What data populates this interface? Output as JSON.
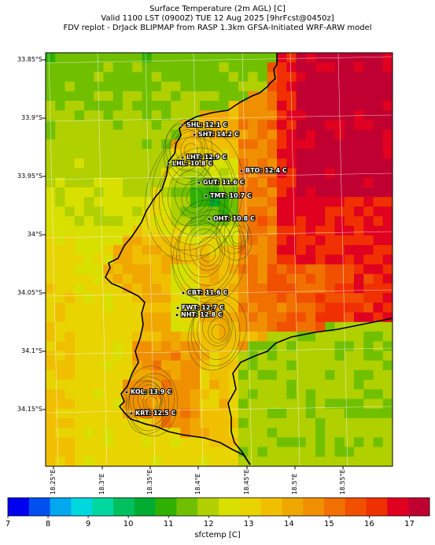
{
  "title": {
    "line1": "Surface Temperature (2m AGL) [C]",
    "line2": "Valid 1100 LST (0900Z) TUE 12 Aug 2025 [9hrFcst@0450z]",
    "line3": "FDV replot - DrJack BLIPMAP from RASP 1.3km GFSA-Initiated WRF-ARW model"
  },
  "axes": {
    "lat_ticks": [
      "33.85°S",
      "33.9°S",
      "33.95°S",
      "34°S",
      "34.05°S",
      "34.1°S",
      "34.15°S"
    ],
    "lon_ticks": [
      "18.25°E",
      "18.3°E",
      "18.35°E",
      "18.4°E",
      "18.45°E",
      "18.5°E",
      "18.55°E"
    ]
  },
  "stations": [
    {
      "label": "SHL: 12.1 C",
      "temp": 12.1
    },
    {
      "label": "SHT: 14.2 C",
      "temp": 14.2
    },
    {
      "label": "LHT: 12.9 C",
      "temp": 12.9
    },
    {
      "label": "LHL: 10.8 C",
      "temp": 10.8
    },
    {
      "label": "BTO: 12.4 C",
      "temp": 12.4
    },
    {
      "label": "GUT: 11.6 C",
      "temp": 11.6
    },
    {
      "label": "TMT: 10.7 C",
      "temp": 10.7
    },
    {
      "label": "OHT: 10.8 C",
      "temp": 10.8
    },
    {
      "label": "CBT: 11.6 C",
      "temp": 11.6
    },
    {
      "label": "FWT: 12.7 C",
      "temp": 12.7
    },
    {
      "label": "NHT: 12.8 C",
      "temp": 12.8
    },
    {
      "label": "KOL: 13.9 C",
      "temp": 13.9
    },
    {
      "label": "KRT: 12.5 C",
      "temp": 12.5
    }
  ],
  "colorbar": {
    "label": "sfctemp [C]",
    "ticks": [
      "7",
      "8",
      "9",
      "10",
      "11",
      "12",
      "13",
      "14",
      "15",
      "16",
      "17"
    ],
    "colors": [
      "#0000f0",
      "#0050f0",
      "#00a8f0",
      "#00d8e0",
      "#00d8a0",
      "#00c060",
      "#00ad30",
      "#30b000",
      "#70c000",
      "#b0d000",
      "#d8e000",
      "#e8d400",
      "#f0c000",
      "#f0a800",
      "#f09000",
      "#f07000",
      "#f05000",
      "#f03000",
      "#e00020",
      "#c00030"
    ]
  }
}
